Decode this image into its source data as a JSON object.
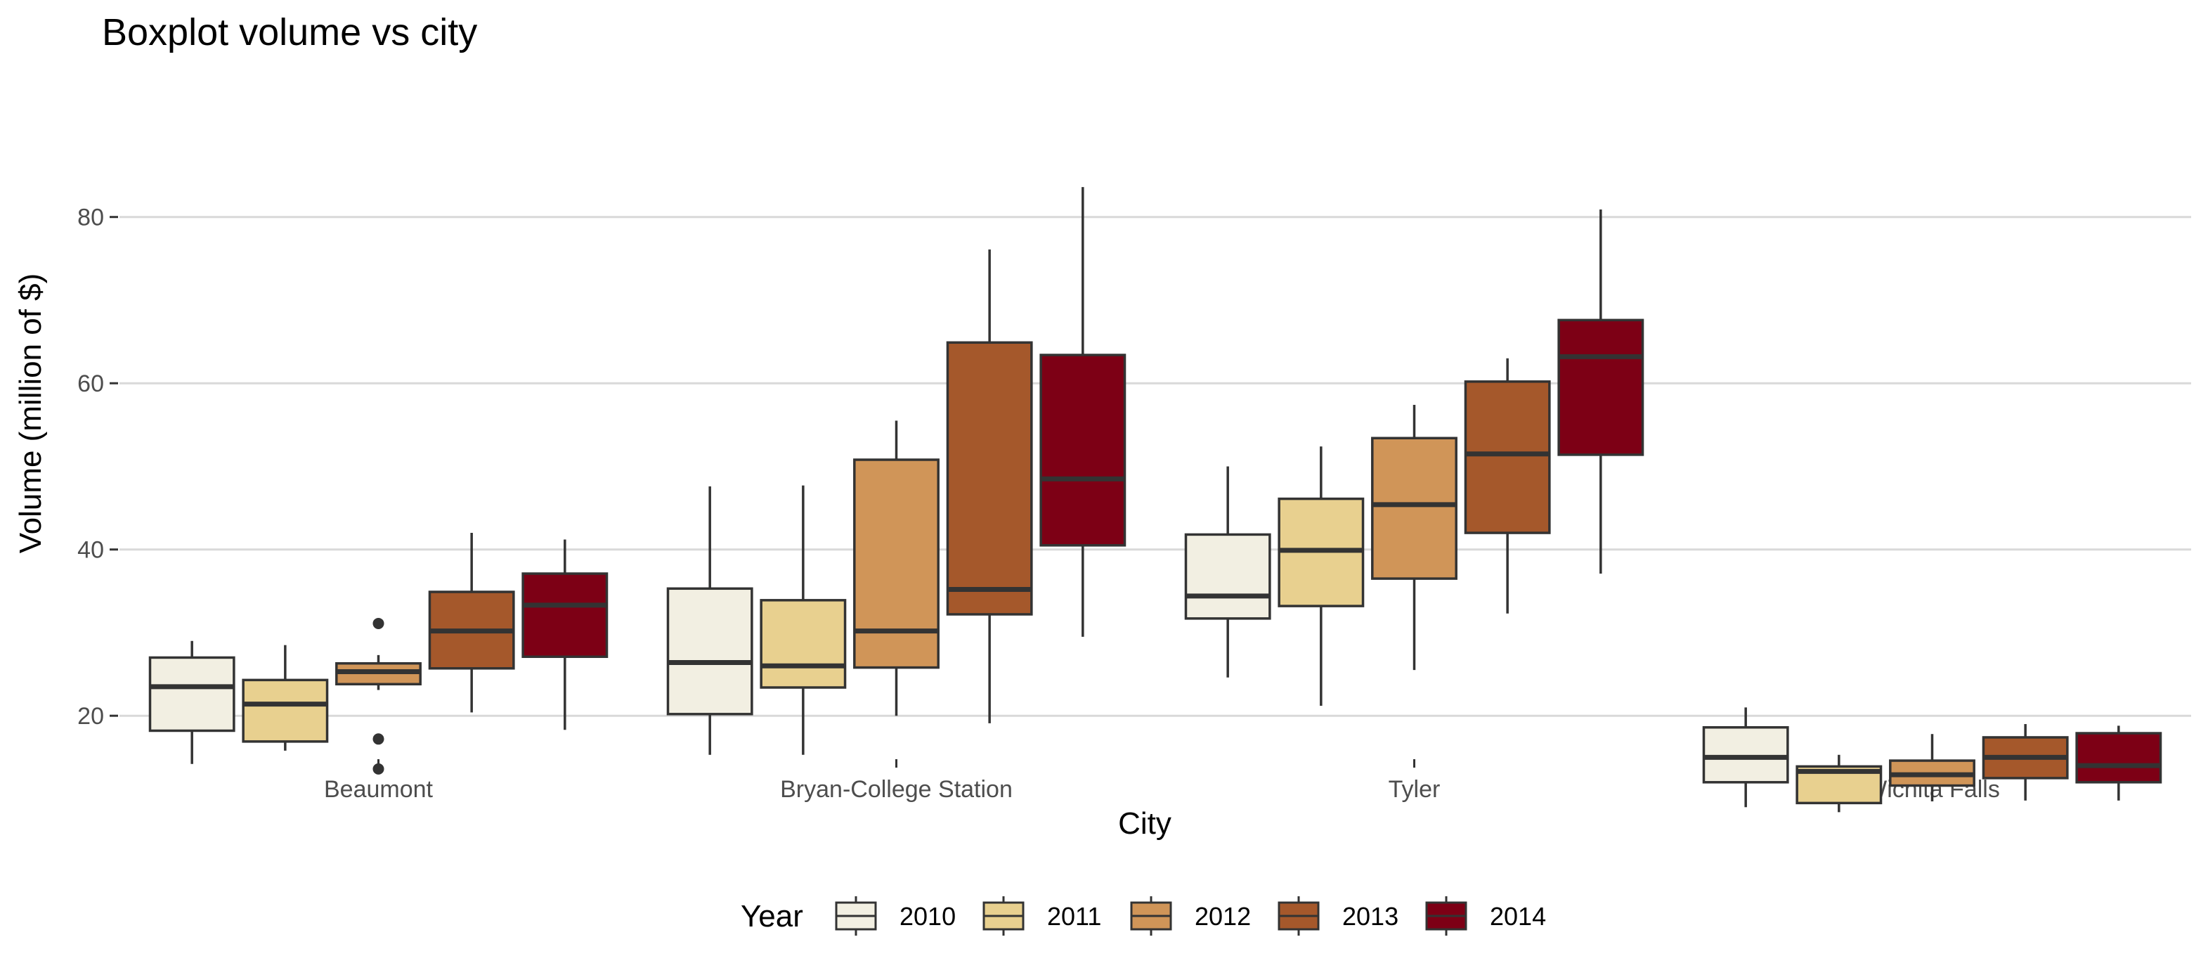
{
  "chart_data": {
    "type": "boxplot",
    "title": "Boxplot volume vs city",
    "xlabel": "City",
    "ylabel": "Volume (million of $)",
    "ylim": [
      5,
      84
    ],
    "yticks": [
      20,
      40,
      60,
      80
    ],
    "grid": "horizontal major",
    "legend_position": "bottom",
    "legend_title": "Year",
    "categories": [
      "Beaumont",
      "Bryan-College Station",
      "Tyler",
      "Wichita Falls"
    ],
    "series": [
      {
        "name": "2010",
        "color": "#f2efe2",
        "boxes": [
          {
            "city": "Beaumont",
            "min": 14.2,
            "q1": 18.2,
            "median": 23.5,
            "q3": 27.0,
            "max": 29.0,
            "outliers": []
          },
          {
            "city": "Bryan-College Station",
            "min": 15.3,
            "q1": 20.2,
            "median": 26.4,
            "q3": 35.3,
            "max": 47.6,
            "outliers": []
          },
          {
            "city": "Tyler",
            "min": 24.6,
            "q1": 31.7,
            "median": 34.4,
            "q3": 41.8,
            "max": 50.0,
            "outliers": []
          },
          {
            "city": "Wichita Falls",
            "min": 9.0,
            "q1": 12.0,
            "median": 15.0,
            "q3": 18.6,
            "max": 21.0,
            "outliers": []
          }
        ]
      },
      {
        "name": "2011",
        "color": "#e8d08f",
        "boxes": [
          {
            "city": "Beaumont",
            "min": 15.8,
            "q1": 16.9,
            "median": 21.4,
            "q3": 24.3,
            "max": 28.5,
            "outliers": []
          },
          {
            "city": "Bryan-College Station",
            "min": 15.3,
            "q1": 23.4,
            "median": 26.0,
            "q3": 33.9,
            "max": 47.7,
            "outliers": []
          },
          {
            "city": "Tyler",
            "min": 21.2,
            "q1": 33.2,
            "median": 39.9,
            "q3": 46.1,
            "max": 52.4,
            "outliers": []
          },
          {
            "city": "Wichita Falls",
            "min": 8.4,
            "q1": 9.5,
            "median": 13.3,
            "q3": 13.9,
            "max": 15.3,
            "outliers": []
          }
        ]
      },
      {
        "name": "2012",
        "color": "#d09558",
        "boxes": [
          {
            "city": "Beaumont",
            "min": 23.1,
            "q1": 23.8,
            "median": 25.3,
            "q3": 26.3,
            "max": 27.3,
            "outliers": [
              31.1,
              17.2,
              13.6
            ]
          },
          {
            "city": "Bryan-College Station",
            "min": 20.0,
            "q1": 25.8,
            "median": 30.2,
            "q3": 50.8,
            "max": 55.5,
            "outliers": []
          },
          {
            "city": "Tyler",
            "min": 25.5,
            "q1": 36.5,
            "median": 45.4,
            "q3": 53.4,
            "max": 57.4,
            "outliers": []
          },
          {
            "city": "Wichita Falls",
            "min": 9.7,
            "q1": 11.6,
            "median": 12.9,
            "q3": 14.6,
            "max": 17.8,
            "outliers": []
          }
        ]
      },
      {
        "name": "2013",
        "color": "#a5582b",
        "boxes": [
          {
            "city": "Beaumont",
            "min": 20.4,
            "q1": 25.7,
            "median": 30.2,
            "q3": 34.9,
            "max": 42.0,
            "outliers": []
          },
          {
            "city": "Bryan-College Station",
            "min": 19.1,
            "q1": 32.2,
            "median": 35.2,
            "q3": 64.9,
            "max": 76.1,
            "outliers": []
          },
          {
            "city": "Tyler",
            "min": 32.3,
            "q1": 42.0,
            "median": 51.5,
            "q3": 60.2,
            "max": 63.0,
            "outliers": []
          },
          {
            "city": "Wichita Falls",
            "min": 9.8,
            "q1": 12.5,
            "median": 15.0,
            "q3": 17.4,
            "max": 19.0,
            "outliers": []
          }
        ]
      },
      {
        "name": "2014",
        "color": "#7d0015",
        "boxes": [
          {
            "city": "Beaumont",
            "min": 18.3,
            "q1": 27.1,
            "median": 33.3,
            "q3": 37.1,
            "max": 41.2,
            "outliers": []
          },
          {
            "city": "Bryan-College Station",
            "min": 29.5,
            "q1": 40.5,
            "median": 48.5,
            "q3": 63.4,
            "max": 83.6,
            "outliers": []
          },
          {
            "city": "Tyler",
            "min": 37.1,
            "q1": 51.4,
            "median": 63.2,
            "q3": 67.6,
            "max": 80.9,
            "outliers": []
          },
          {
            "city": "Wichita Falls",
            "min": 9.8,
            "q1": 12.0,
            "median": 14.0,
            "q3": 17.9,
            "max": 18.8,
            "outliers": []
          }
        ]
      }
    ]
  }
}
